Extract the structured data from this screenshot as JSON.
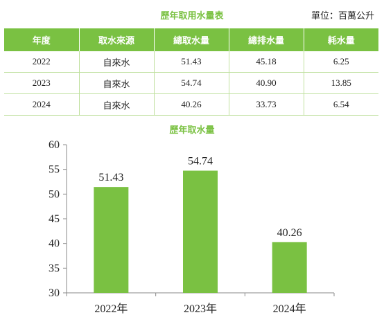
{
  "table": {
    "title": "歷年取用水量表",
    "unit": "單位：百萬公升",
    "headers": [
      "年度",
      "取水來源",
      "總取水量",
      "總排水量",
      "耗水量"
    ],
    "rows": [
      [
        "2022",
        "自來水",
        "51.43",
        "45.18",
        "6.25"
      ],
      [
        "2023",
        "自來水",
        "54.74",
        "40.90",
        "13.85"
      ],
      [
        "2024",
        "自來水",
        "40.26",
        "33.73",
        "6.54"
      ]
    ]
  },
  "chart_data": {
    "type": "bar",
    "title": "歷年取水量",
    "categories": [
      "2022年",
      "2023年",
      "2024年"
    ],
    "values": [
      51.43,
      54.74,
      40.26
    ],
    "value_labels": [
      "51.43",
      "54.74",
      "40.26"
    ],
    "ylim": [
      30,
      60
    ],
    "yticks": [
      30,
      35,
      40,
      45,
      50,
      55,
      60
    ],
    "bar_color": "#7ac142",
    "xlabel": "",
    "ylabel": ""
  },
  "colors": {
    "accent": "#7ac142",
    "row_border": "#bfe09e"
  }
}
